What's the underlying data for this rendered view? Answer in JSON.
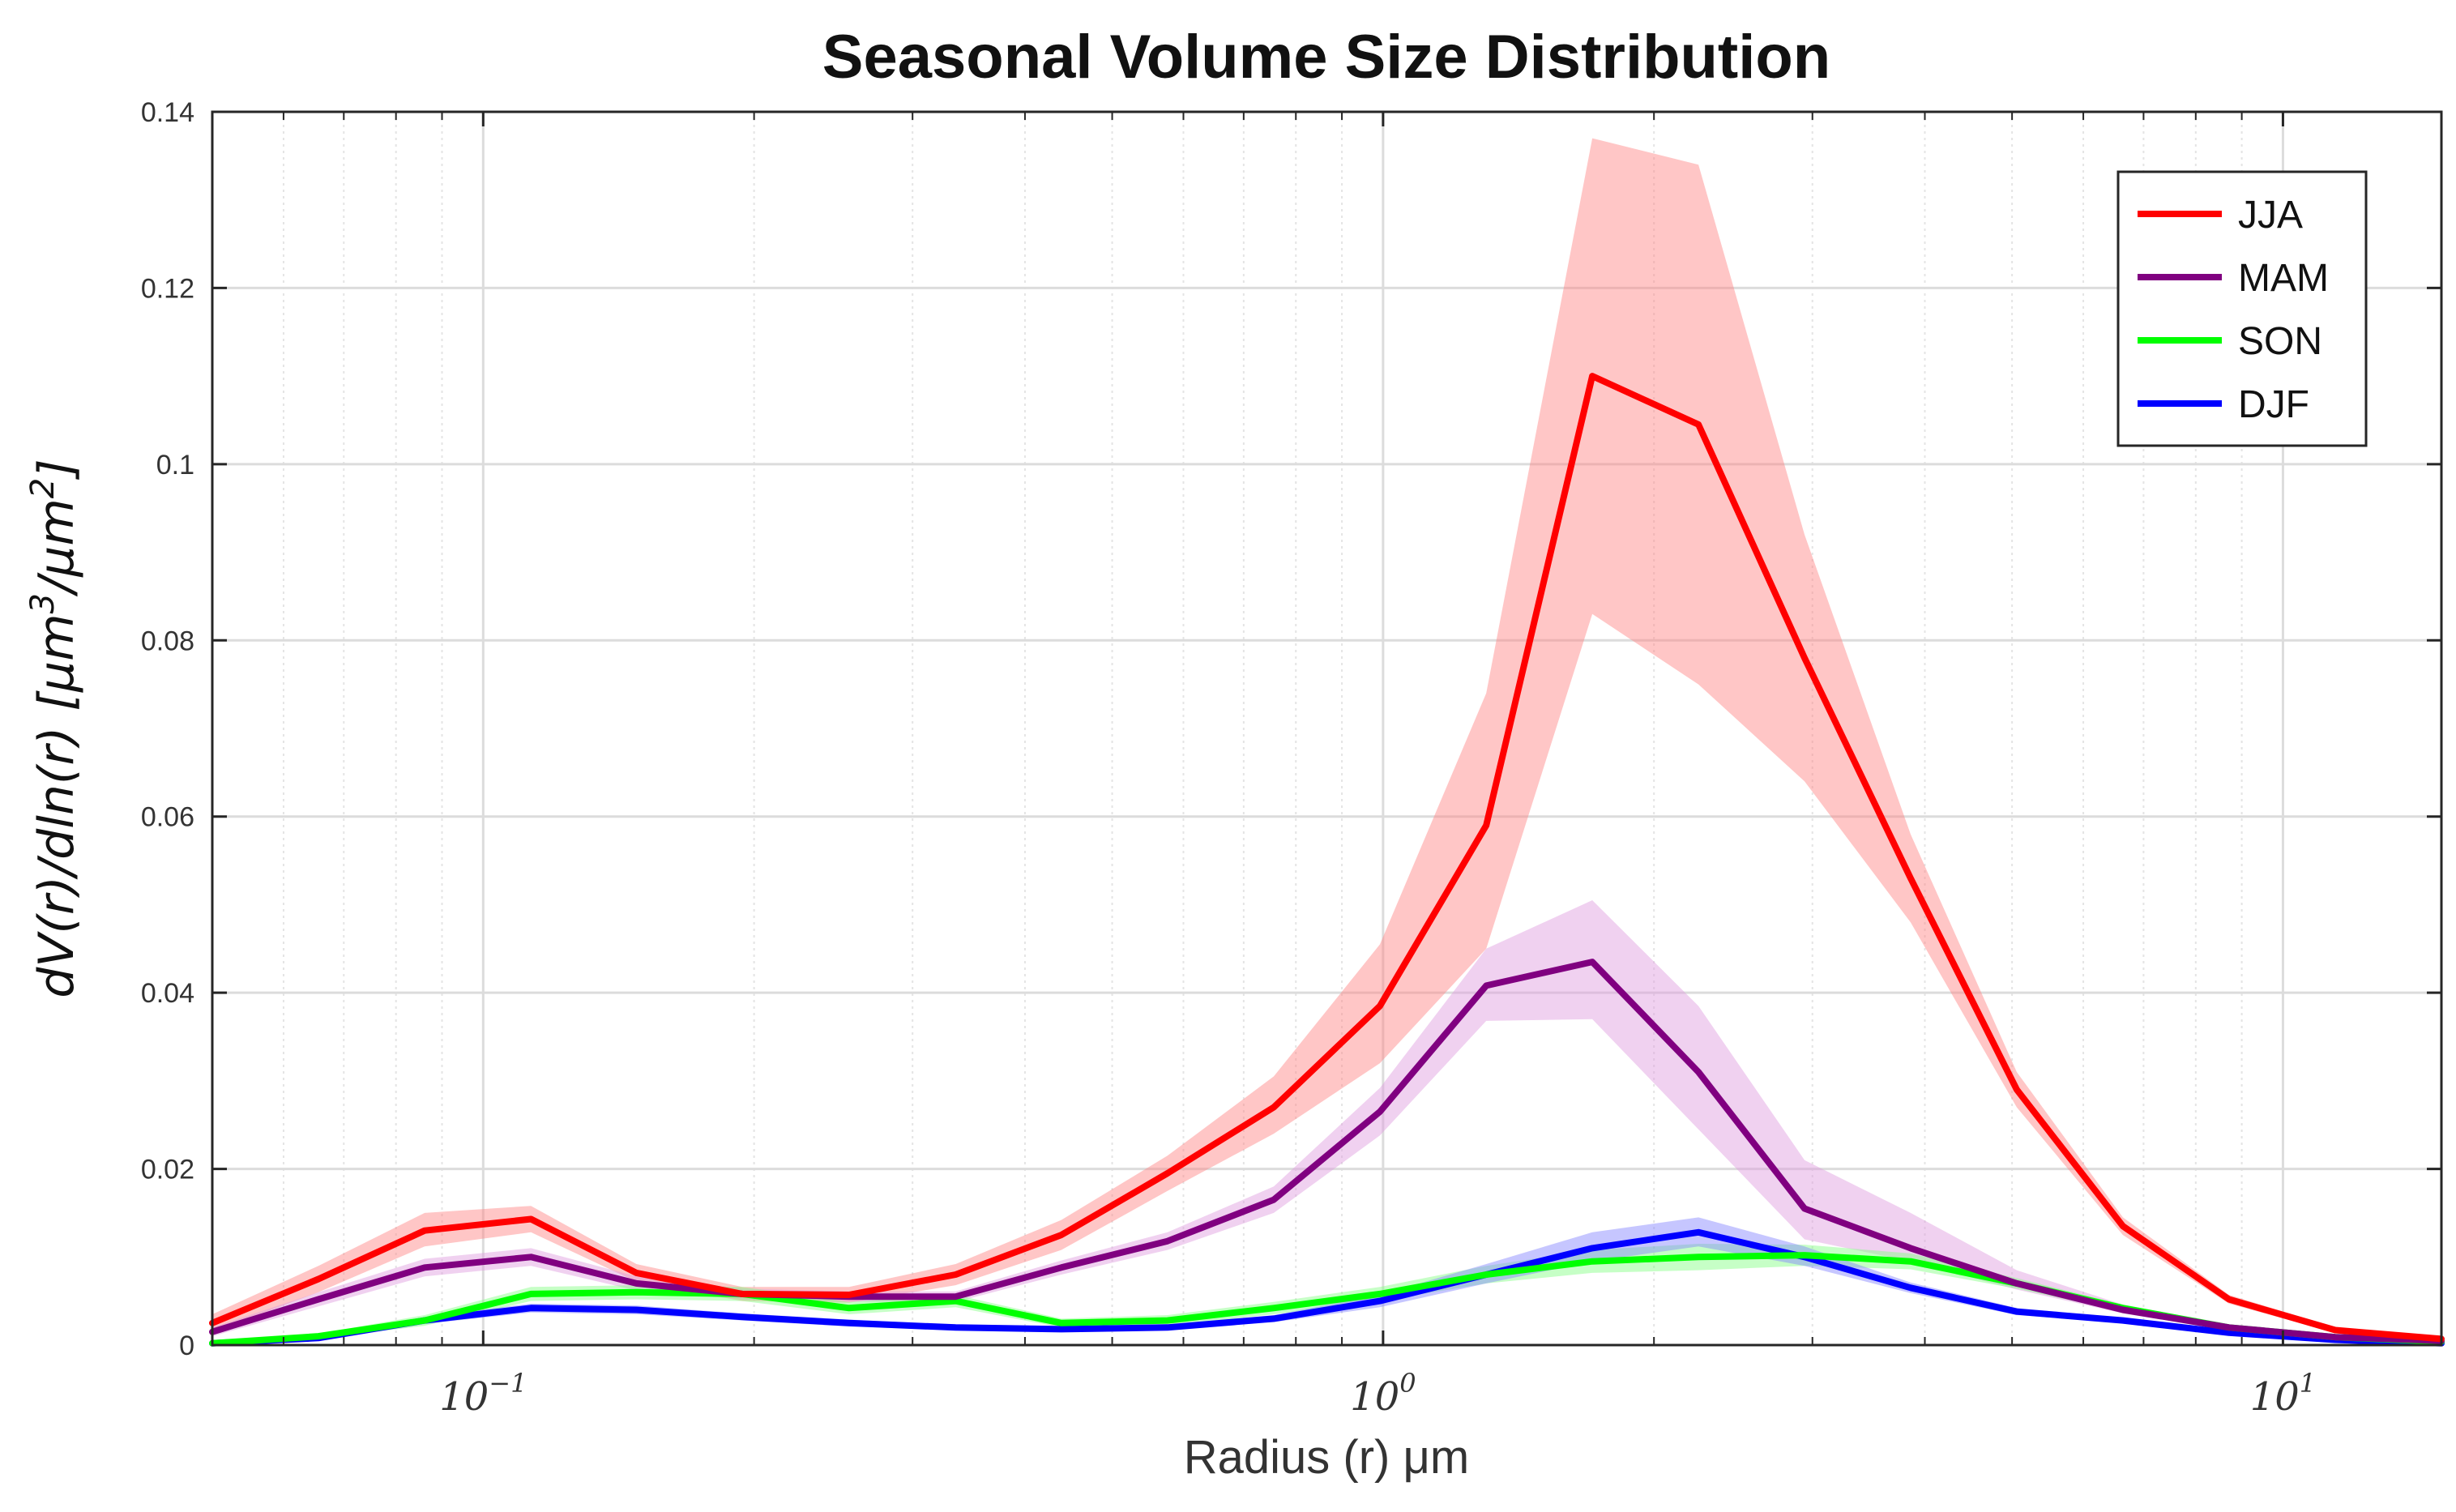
{
  "chart_data": {
    "type": "line",
    "title": "Seasonal Volume Size Distribution",
    "xlabel": "Radius (r) μm",
    "ylabel": "dV(r)/dln(r) [μm³/μm²]",
    "ylabel_parts": {
      "pre": "dV(r)/dln(r)  [",
      "unit1": "μm",
      "exp1": "3",
      "sep": "/",
      "unit2": "μm",
      "exp2": "2",
      "post": "]"
    },
    "xscale": "log",
    "xlim": [
      0.05,
      15
    ],
    "ylim": [
      0,
      0.14
    ],
    "grid": true,
    "legend_location": "top-right",
    "yticks": [
      {
        "value": 0,
        "label": "0"
      },
      {
        "value": 0.02,
        "label": "0.02"
      },
      {
        "value": 0.04,
        "label": "0.04"
      },
      {
        "value": 0.06,
        "label": "0.06"
      },
      {
        "value": 0.08,
        "label": "0.08"
      },
      {
        "value": 0.1,
        "label": "0.1"
      },
      {
        "value": 0.12,
        "label": "0.12"
      },
      {
        "value": 0.14,
        "label": "0.14"
      }
    ],
    "xticks": [
      {
        "value": 0.1,
        "base": "10",
        "exp": "−1"
      },
      {
        "value": 1,
        "base": "10",
        "exp": "0"
      },
      {
        "value": 10,
        "base": "10",
        "exp": "1"
      }
    ],
    "x": [
      0.05,
      0.0656,
      0.0861,
      0.113,
      0.148,
      0.194,
      0.255,
      0.335,
      0.439,
      0.576,
      0.756,
      0.992,
      1.302,
      1.708,
      2.241,
      2.94,
      3.857,
      5.06,
      6.64,
      8.71,
      11.43,
      15.0
    ],
    "series": [
      {
        "name": "JJA",
        "color": "#ff0000",
        "band_color": "#ff8080",
        "values": [
          0.0025,
          0.0075,
          0.013,
          0.0143,
          0.0082,
          0.0058,
          0.0057,
          0.008,
          0.0125,
          0.0195,
          0.027,
          0.0385,
          0.059,
          0.11,
          0.1045,
          0.078,
          0.053,
          0.029,
          0.0135,
          0.0052,
          0.0017,
          0.0007
        ],
        "lower": [
          0.0015,
          0.006,
          0.0112,
          0.0128,
          0.0072,
          0.005,
          0.0048,
          0.0068,
          0.0108,
          0.0175,
          0.024,
          0.032,
          0.045,
          0.083,
          0.075,
          0.064,
          0.048,
          0.027,
          0.0125,
          0.0047,
          0.0014,
          0.0005
        ],
        "upper": [
          0.0035,
          0.009,
          0.015,
          0.0158,
          0.0092,
          0.0066,
          0.0066,
          0.0092,
          0.0142,
          0.0215,
          0.0305,
          0.0455,
          0.074,
          0.137,
          0.134,
          0.092,
          0.058,
          0.031,
          0.0145,
          0.0057,
          0.002,
          0.0009
        ]
      },
      {
        "name": "MAM",
        "color": "#800080",
        "band_color": "#dd99dd",
        "values": [
          0.0015,
          0.0052,
          0.0088,
          0.01,
          0.007,
          0.0058,
          0.0055,
          0.0055,
          0.0088,
          0.0118,
          0.0165,
          0.0265,
          0.0408,
          0.0435,
          0.031,
          0.0155,
          0.011,
          0.007,
          0.004,
          0.002,
          0.0009,
          0.0005
        ],
        "lower": [
          0.001,
          0.0044,
          0.0078,
          0.009,
          0.0062,
          0.0052,
          0.0049,
          0.0049,
          0.008,
          0.0108,
          0.015,
          0.0238,
          0.0368,
          0.037,
          0.0245,
          0.012,
          0.0095,
          0.0063,
          0.0036,
          0.0017,
          0.0007,
          0.0004
        ],
        "upper": [
          0.002,
          0.006,
          0.0098,
          0.011,
          0.0078,
          0.0064,
          0.0061,
          0.0061,
          0.0096,
          0.0128,
          0.018,
          0.0292,
          0.045,
          0.0505,
          0.0385,
          0.021,
          0.015,
          0.0085,
          0.0046,
          0.0023,
          0.0011,
          0.0006
        ]
      },
      {
        "name": "SON",
        "color": "#00ff00",
        "band_color": "#80ff80",
        "values": [
          0.0002,
          0.001,
          0.0028,
          0.0058,
          0.006,
          0.0058,
          0.0042,
          0.005,
          0.0025,
          0.0028,
          0.0042,
          0.0058,
          0.008,
          0.0095,
          0.01,
          0.0102,
          0.0095,
          0.007,
          0.0042,
          0.002,
          0.0009,
          0.0004
        ],
        "lower": [
          0.0001,
          0.0007,
          0.0022,
          0.005,
          0.0052,
          0.005,
          0.0035,
          0.0043,
          0.002,
          0.0022,
          0.0035,
          0.005,
          0.007,
          0.0082,
          0.0085,
          0.009,
          0.0086,
          0.0064,
          0.0038,
          0.0017,
          0.0007,
          0.0003
        ],
        "upper": [
          0.0003,
          0.0013,
          0.0034,
          0.0066,
          0.0068,
          0.0066,
          0.0049,
          0.0057,
          0.003,
          0.0034,
          0.0049,
          0.0066,
          0.009,
          0.0108,
          0.0115,
          0.0114,
          0.0104,
          0.0076,
          0.0046,
          0.0023,
          0.0011,
          0.0005
        ]
      },
      {
        "name": "DJF",
        "color": "#0000ff",
        "band_color": "#8080ff",
        "values": [
          0.0002,
          0.0008,
          0.0028,
          0.0042,
          0.004,
          0.0032,
          0.0025,
          0.002,
          0.0018,
          0.002,
          0.003,
          0.005,
          0.008,
          0.011,
          0.0128,
          0.01,
          0.0065,
          0.0038,
          0.0028,
          0.0014,
          0.0006,
          0.0002
        ],
        "lower": [
          0.0001,
          0.0006,
          0.0024,
          0.0037,
          0.0035,
          0.0028,
          0.0021,
          0.0017,
          0.0015,
          0.0017,
          0.0026,
          0.0043,
          0.007,
          0.0095,
          0.0112,
          0.009,
          0.0059,
          0.0034,
          0.0025,
          0.0012,
          0.0005,
          0.0001
        ],
        "upper": [
          0.0003,
          0.001,
          0.0032,
          0.0047,
          0.0045,
          0.0036,
          0.0029,
          0.0023,
          0.0021,
          0.0023,
          0.0034,
          0.0057,
          0.0092,
          0.0128,
          0.0145,
          0.0112,
          0.0071,
          0.0042,
          0.0031,
          0.0016,
          0.0007,
          0.0003
        ]
      }
    ]
  }
}
